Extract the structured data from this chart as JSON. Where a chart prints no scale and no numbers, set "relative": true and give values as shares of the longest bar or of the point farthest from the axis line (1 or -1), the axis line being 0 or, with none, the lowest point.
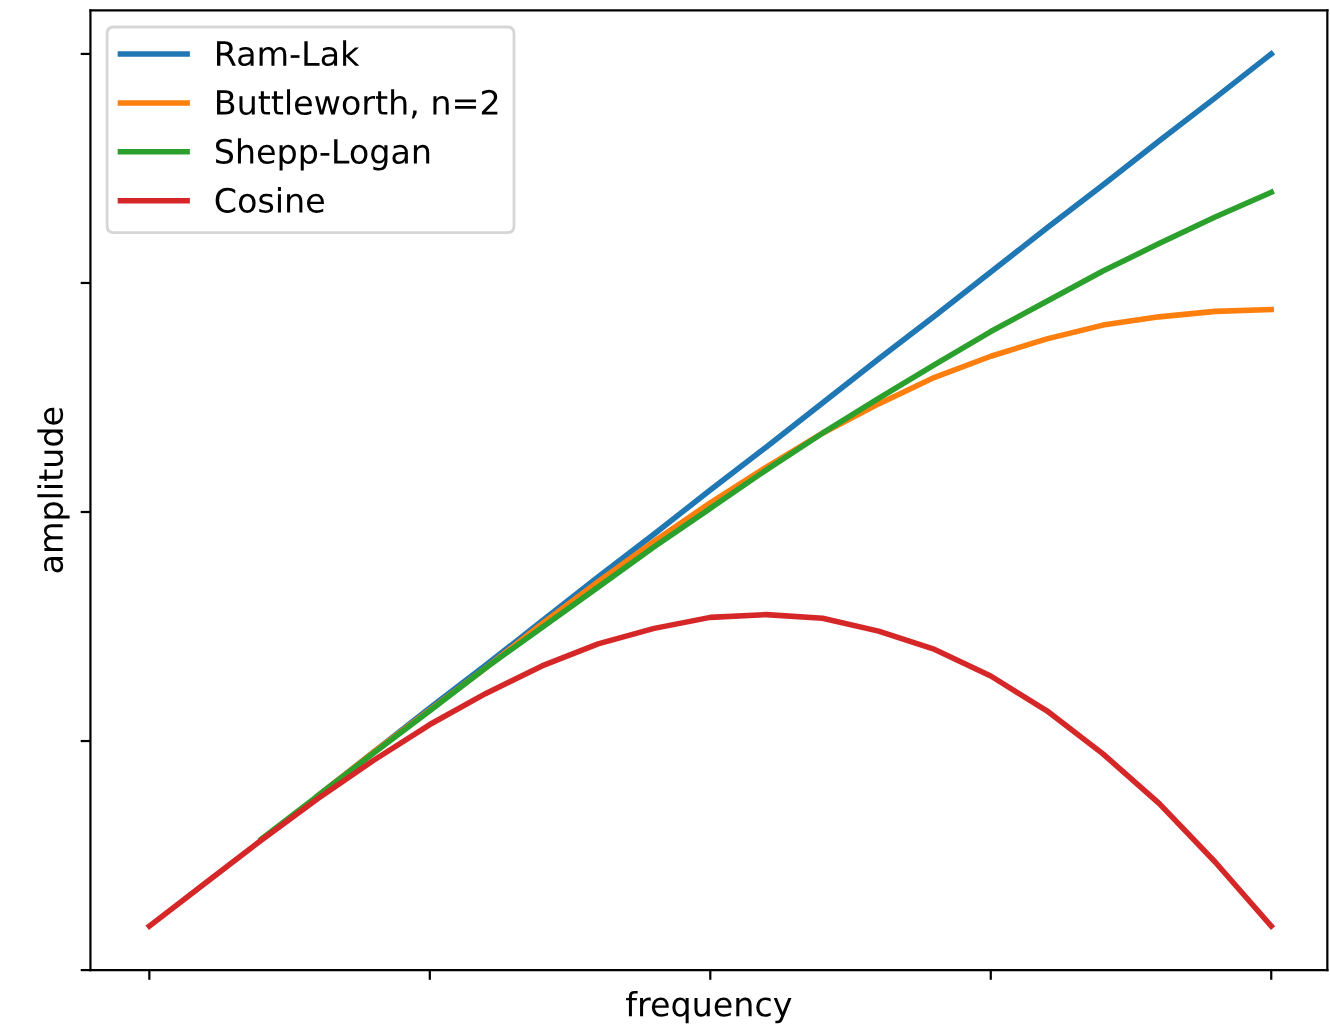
{
  "chart_data": {
    "type": "line",
    "relative": true,
    "xlabel": "frequency",
    "ylabel": "amplitude",
    "legend": "top left",
    "tick_labels": false,
    "grid": false,
    "marker": "none",
    "line_style": "solid",
    "categories": [
      null,
      null,
      null,
      null,
      null,
      null,
      null,
      null,
      null,
      null,
      null,
      null,
      null,
      null,
      null,
      null,
      null,
      null,
      null,
      null,
      null
    ],
    "series": [
      {
        "name": "Ram-Lak",
        "color": "#1f77b4",
        "values": [
          null,
          null,
          null,
          0.19,
          0.238,
          0.286,
          0.333,
          0.381,
          0.429,
          0.476,
          0.524,
          0.571,
          0.619,
          0.667,
          0.714,
          0.762,
          0.81,
          0.857,
          0.905,
          0.952,
          1
        ]
      },
      {
        "name": "Buttleworth, n=2",
        "color": "#ff7f0e",
        "values": [
          null,
          null,
          null,
          0.19,
          0.238,
          0.284,
          0.33,
          0.378,
          0.424,
          0.468,
          0.51,
          0.549,
          0.586,
          0.618,
          0.647,
          0.67,
          0.689,
          0.704,
          0.713,
          0.719,
          0.721
        ]
      },
      {
        "name": "Shepp-Logan",
        "color": "#2ca02c",
        "values": [
          null,
          null,
          0.143,
          0.19,
          0.237,
          0.283,
          0.33,
          0.374,
          0.418,
          0.462,
          0.504,
          0.546,
          0.586,
          0.624,
          0.661,
          0.697,
          0.73,
          0.763,
          0.793,
          0.822,
          0.849
        ]
      },
      {
        "name": "Cosine",
        "color": "#d62728",
        "values": [
          0.048,
          0.095,
          0.142,
          0.187,
          0.229,
          0.268,
          0.302,
          0.332,
          0.356,
          0.373,
          0.385,
          0.388,
          0.384,
          0.37,
          0.35,
          0.321,
          0.283,
          0.236,
          0.182,
          0.118,
          0.048
        ]
      }
    ]
  }
}
